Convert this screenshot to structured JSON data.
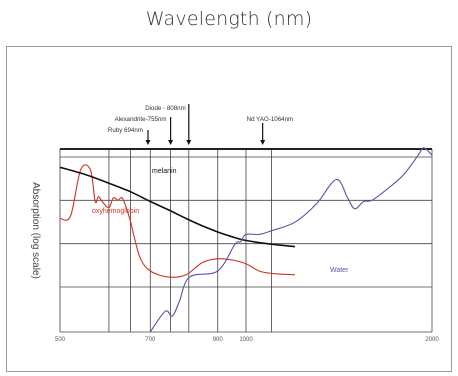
{
  "title": "Wavelength (nm)",
  "chart_data": {
    "type": "line",
    "title": "Wavelength (nm)",
    "xlabel": "",
    "ylabel": "Absorption (log scale)",
    "xscale": "log",
    "xlim": [
      500,
      2000
    ],
    "x_ticks": [
      {
        "value": 500,
        "label": "500"
      },
      {
        "value": 700,
        "label": "700"
      },
      {
        "value": 900,
        "label": "900"
      },
      {
        "value": 1000,
        "label": "1000"
      },
      {
        "value": 2000,
        "label": "2000"
      }
    ],
    "x_gridlines": [
      600,
      650,
      700,
      755,
      808,
      900,
      1000,
      1100,
      2000
    ],
    "y_gridlines": 4,
    "grid": true,
    "series": [
      {
        "name": "oxyhemoglobin",
        "color": "#cc3322",
        "x": [
          500,
          520,
          540,
          560,
          570,
          577,
          585,
          600,
          610,
          620,
          630,
          640,
          650,
          660,
          675,
          700,
          750,
          800,
          850,
          900,
          950,
          1000,
          1050,
          1100,
          1200
        ],
        "y": [
          0.38,
          0.4,
          0.78,
          0.78,
          0.52,
          0.56,
          0.52,
          0.47,
          0.55,
          0.53,
          0.55,
          0.47,
          0.36,
          0.22,
          0.05,
          -0.05,
          -0.1,
          -0.08,
          0.02,
          0.05,
          0.04,
          0.01,
          -0.05,
          -0.07,
          -0.08
        ]
      },
      {
        "name": "melanin",
        "color": "#111111",
        "x": [
          500,
          550,
          600,
          650,
          700,
          750,
          800,
          850,
          900,
          950,
          1000,
          1100,
          1200
        ],
        "y": [
          0.8,
          0.74,
          0.67,
          0.6,
          0.52,
          0.45,
          0.38,
          0.32,
          0.27,
          0.23,
          0.2,
          0.17,
          0.15
        ]
      },
      {
        "name": "Water",
        "color": "#5555aa",
        "x": [
          700,
          740,
          760,
          780,
          810,
          900,
          960,
          980,
          1000,
          1050,
          1100,
          1200,
          1300,
          1400,
          1460,
          1500,
          1550,
          1600,
          1700,
          1800,
          1900,
          1940,
          2000
        ],
        "y": [
          -0.55,
          -0.38,
          -0.42,
          -0.3,
          -0.1,
          -0.05,
          0.17,
          0.19,
          0.25,
          0.25,
          0.28,
          0.35,
          0.5,
          0.7,
          0.55,
          0.46,
          0.52,
          0.53,
          0.63,
          0.74,
          0.9,
          0.96,
          0.9
        ]
      }
    ],
    "annotations": [
      {
        "label": "Diode - 808nm",
        "x": 808
      },
      {
        "label": "Alexandrite-755nm",
        "x": 755
      },
      {
        "label": "Ruby 694nm",
        "x": 694
      },
      {
        "label": "Nd YAG-1064nm",
        "x": 1064
      }
    ]
  }
}
